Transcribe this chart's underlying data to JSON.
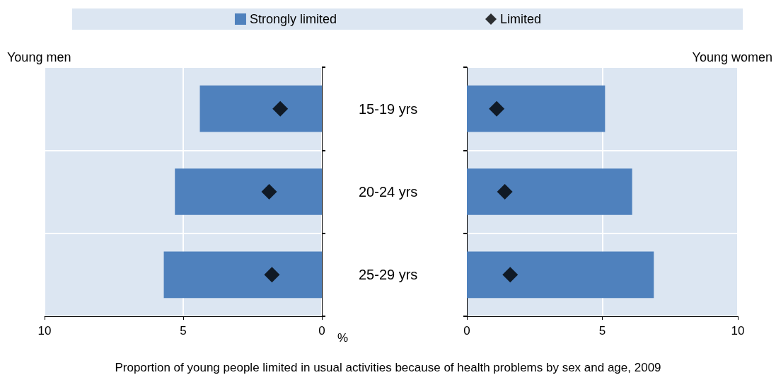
{
  "chart_data": [
    {
      "type": "bar",
      "orientation": "horizontal",
      "title": "Young men",
      "xlabel": "%",
      "categories": [
        "15-19 yrs",
        "20-24 yrs",
        "25-29 yrs"
      ],
      "series": [
        {
          "name": "Strongly limited",
          "type": "bar",
          "color": "#4f81bd",
          "values": [
            4.4,
            5.3,
            5.7
          ]
        },
        {
          "name": "Limited",
          "type": "scatter",
          "color": "#000000",
          "values": [
            1.5,
            1.9,
            1.8
          ]
        }
      ],
      "xlim": [
        10,
        0
      ],
      "xticks": [
        10,
        5,
        0
      ],
      "grid": true,
      "legend": "top",
      "marker": "diamond",
      "annotations": [
        "Proportion of young people limited in usual activities because of health problems by sex and age, 2009"
      ]
    },
    {
      "type": "bar",
      "orientation": "horizontal",
      "title": "Young women",
      "categories": [
        null,
        null,
        null
      ],
      "series": [
        {
          "type": "bar",
          "color": "#4f81bd",
          "values": [
            5.1,
            6.1,
            6.9
          ]
        },
        {
          "type": "scatter",
          "color": "#000000",
          "values": [
            1.1,
            1.4,
            1.6
          ]
        }
      ],
      "xlim": [
        0,
        10
      ],
      "xticks": [
        0,
        5,
        10
      ],
      "grid": true,
      "marker": "diamond",
      "tick_labels": "x"
    }
  ]
}
